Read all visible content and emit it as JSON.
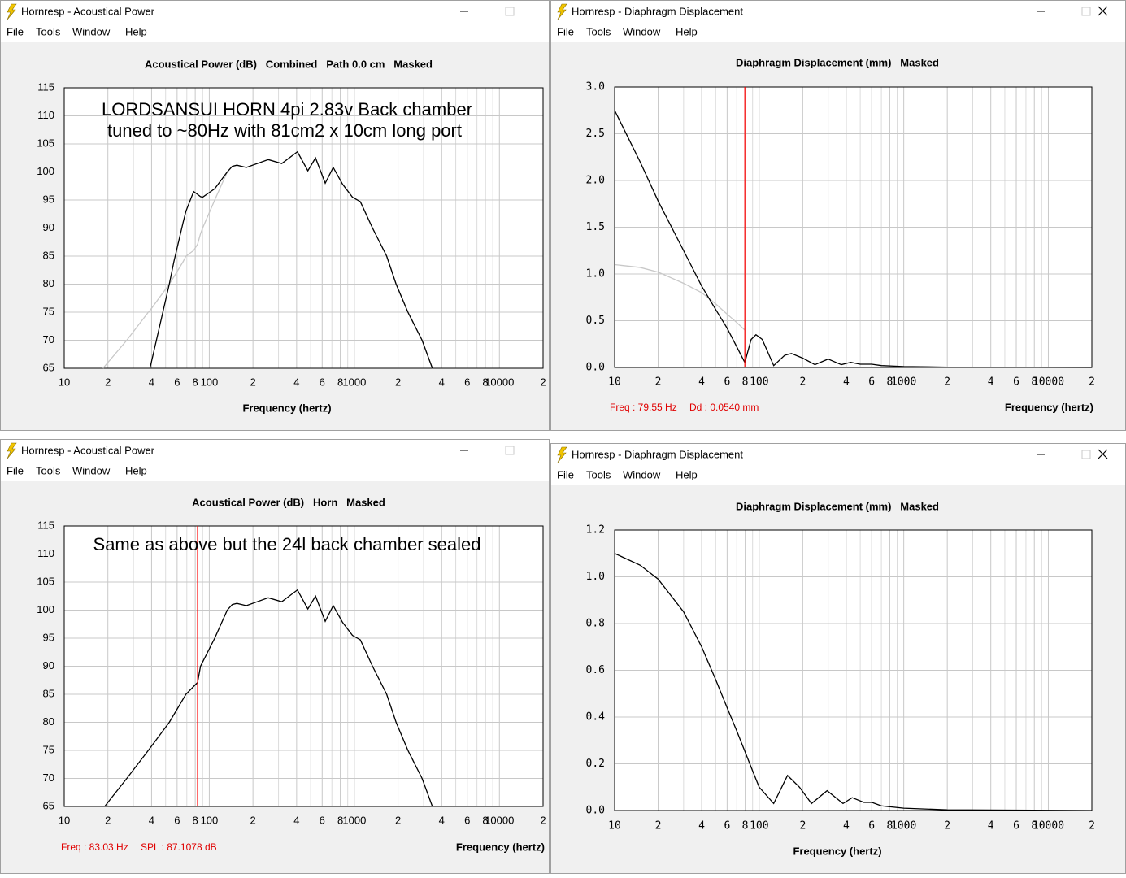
{
  "windows": [
    {
      "title": "Hornresp - Acoustical Power",
      "menu": [
        "File",
        "Tools",
        "Window",
        "Help"
      ]
    },
    {
      "title": "Hornresp - Diaphragm Displacement",
      "menu": [
        "File",
        "Tools",
        "Window",
        "Help"
      ]
    },
    {
      "title": "Hornresp - Acoustical Power",
      "menu": [
        "File",
        "Tools",
        "Window",
        "Help"
      ]
    },
    {
      "title": "Hornresp - Diaphragm Displacement",
      "menu": [
        "File",
        "Tools",
        "Window",
        "Help"
      ]
    }
  ],
  "chart_data": [
    {
      "type": "line",
      "title": "Acoustical Power (dB)   Combined   Path 0.0 cm   Masked",
      "x_label": "Frequency (hertz)",
      "annotations": [
        "LORDSANSUI HORN 4pi 2.83v Back chamber",
        "tuned to ~80Hz with 81cm2 x 10cm long port"
      ],
      "x_log": true,
      "grid": true,
      "xlim": [
        10,
        20000
      ],
      "ylim": [
        65,
        115
      ],
      "xticks": [
        10,
        {
          "value": 20,
          "label": "2"
        },
        {
          "value": 40,
          "label": "4"
        },
        {
          "value": 60,
          "label": "6"
        },
        {
          "value": 80,
          "label": "8"
        },
        100,
        {
          "value": 200,
          "label": "2"
        },
        {
          "value": 400,
          "label": "4"
        },
        {
          "value": 600,
          "label": "6"
        },
        {
          "value": 800,
          "label": "8"
        },
        1000,
        {
          "value": 2000,
          "label": "2"
        },
        {
          "value": 4000,
          "label": "4"
        },
        {
          "value": 6000,
          "label": "6"
        },
        {
          "value": 8000,
          "label": "8"
        },
        10000,
        {
          "value": 20000,
          "label": "2"
        }
      ],
      "xminor": [
        30,
        50,
        70,
        90,
        300,
        500,
        700,
        900,
        3000,
        5000,
        7000,
        9000
      ],
      "yticks": [
        65,
        70,
        75,
        80,
        85,
        90,
        95,
        100,
        105,
        110,
        115
      ],
      "x": [
        18.5,
        27,
        38,
        39,
        53,
        57,
        66,
        69,
        78,
        83,
        87,
        90,
        109,
        133,
        144,
        155,
        180,
        255,
        316,
        405,
        478,
        540,
        630,
        715,
        830,
        970,
        1100,
        1334,
        1670,
        1940,
        2340,
        2930,
        3450
      ],
      "series": [
        {
          "color": "#c8c8c8",
          "values": [
            65,
            70,
            75,
            75.3,
            80,
            81.3,
            84,
            85,
            86,
            87.1,
            89,
            90,
            95,
            100,
            101,
            101.2,
            100.8,
            102.2,
            101.5,
            103.6,
            100.2,
            102.5,
            98,
            100.8,
            97.8,
            95.5,
            94.7,
            90,
            85,
            80,
            75,
            70,
            65
          ]
        },
        {
          "color": "#000000",
          "values": [
            null,
            null,
            null,
            65,
            80,
            84,
            91,
            93,
            96.5,
            96,
            95.6,
            95.5,
            97,
            100,
            101,
            101.2,
            100.8,
            102.2,
            101.5,
            103.6,
            100.2,
            102.5,
            98,
            100.8,
            97.8,
            95.5,
            94.7,
            90,
            85,
            80,
            75,
            70,
            65
          ]
        }
      ]
    },
    {
      "type": "line",
      "title": "Diaphragm Displacement (mm)   Masked",
      "x_label": "Frequency (hertz)",
      "x_log": true,
      "grid": true,
      "xlim": [
        10,
        20000
      ],
      "ylim": [
        0,
        3
      ],
      "xticks": [
        10,
        {
          "value": 20,
          "label": "2"
        },
        {
          "value": 40,
          "label": "4"
        },
        {
          "value": 60,
          "label": "6"
        },
        {
          "value": 80,
          "label": "8"
        },
        100,
        {
          "value": 200,
          "label": "2"
        },
        {
          "value": 400,
          "label": "4"
        },
        {
          "value": 600,
          "label": "6"
        },
        {
          "value": 800,
          "label": "8"
        },
        1000,
        {
          "value": 2000,
          "label": "2"
        },
        {
          "value": 4000,
          "label": "4"
        },
        {
          "value": 6000,
          "label": "6"
        },
        {
          "value": 8000,
          "label": "8"
        },
        10000,
        {
          "value": 20000,
          "label": "2"
        }
      ],
      "xminor": [
        30,
        50,
        70,
        90,
        300,
        500,
        700,
        900,
        3000,
        5000,
        7000,
        9000
      ],
      "yticks": [
        {
          "value": 0,
          "label": "0.0"
        },
        0.5,
        {
          "value": 1,
          "label": "1.0"
        },
        1.5,
        {
          "value": 2,
          "label": "2.0"
        },
        2.5,
        {
          "value": 3,
          "label": "3.0"
        }
      ],
      "cursor": {
        "x": 79.55,
        "color": "#ff0000",
        "labels": [
          "Freq : 79.55 Hz",
          "Dd : 0.0540 mm"
        ]
      },
      "x": [
        10,
        15,
        20,
        30,
        40,
        50,
        60,
        70,
        79.55,
        88,
        95,
        105,
        126,
        150,
        167,
        200,
        243,
        300,
        370,
        430,
        500,
        600,
        700,
        1000,
        2000,
        20000
      ],
      "series": [
        {
          "color": "#c8c8c8",
          "values": [
            1.1,
            1.07,
            1.02,
            0.9,
            0.8,
            0.68,
            0.57,
            0.48,
            0.4,
            null,
            null,
            null,
            null,
            null,
            null,
            null,
            null,
            null,
            null,
            null,
            null,
            null,
            null,
            null,
            null,
            null
          ]
        },
        {
          "color": "#000000",
          "values": [
            2.75,
            2.2,
            1.78,
            1.25,
            0.87,
            0.62,
            0.42,
            0.22,
            0.054,
            0.3,
            0.35,
            0.3,
            0.02,
            0.13,
            0.15,
            0.1,
            0.03,
            0.09,
            0.03,
            0.055,
            0.035,
            0.035,
            0.02,
            0.01,
            0.003,
            0
          ]
        }
      ]
    },
    {
      "type": "line",
      "title": "Acoustical Power (dB)   Horn   Masked",
      "x_label": "Frequency (hertz)",
      "annotations": [
        "Same as above but the 24l back chamber sealed"
      ],
      "x_log": true,
      "grid": true,
      "xlim": [
        10,
        20000
      ],
      "ylim": [
        65,
        115
      ],
      "xticks": [
        10,
        {
          "value": 20,
          "label": "2"
        },
        {
          "value": 40,
          "label": "4"
        },
        {
          "value": 60,
          "label": "6"
        },
        {
          "value": 80,
          "label": "8"
        },
        100,
        {
          "value": 200,
          "label": "2"
        },
        {
          "value": 400,
          "label": "4"
        },
        {
          "value": 600,
          "label": "6"
        },
        {
          "value": 800,
          "label": "8"
        },
        1000,
        {
          "value": 2000,
          "label": "2"
        },
        {
          "value": 4000,
          "label": "4"
        },
        {
          "value": 6000,
          "label": "6"
        },
        {
          "value": 8000,
          "label": "8"
        },
        10000,
        {
          "value": 20000,
          "label": "2"
        }
      ],
      "xminor": [
        30,
        50,
        70,
        90,
        300,
        500,
        700,
        900,
        3000,
        5000,
        7000,
        9000
      ],
      "yticks": [
        65,
        70,
        75,
        80,
        85,
        90,
        95,
        100,
        105,
        110,
        115
      ],
      "cursor": {
        "x": 83.03,
        "color": "#ff0000",
        "labels": [
          "Freq : 83.03 Hz",
          "SPL : 87.1078 dB"
        ]
      },
      "x": [
        19,
        27,
        38,
        53,
        69,
        83,
        87,
        109,
        133,
        144,
        155,
        180,
        255,
        316,
        405,
        478,
        540,
        630,
        715,
        830,
        970,
        1100,
        1334,
        1670,
        1940,
        2340,
        2930,
        3450
      ],
      "series": [
        {
          "color": "#000000",
          "values": [
            65,
            70,
            75,
            80,
            85,
            87.1,
            90,
            95,
            100,
            101,
            101.2,
            100.8,
            102.2,
            101.5,
            103.6,
            100.2,
            102.5,
            98,
            100.8,
            97.8,
            95.5,
            94.7,
            90,
            85,
            80,
            75,
            70,
            65
          ]
        }
      ]
    },
    {
      "type": "line",
      "title": "Diaphragm Displacement (mm)   Masked",
      "x_label": "Frequency (hertz)",
      "x_log": true,
      "grid": true,
      "xlim": [
        10,
        20000
      ],
      "ylim": [
        0,
        1.2
      ],
      "xticks": [
        10,
        {
          "value": 20,
          "label": "2"
        },
        {
          "value": 40,
          "label": "4"
        },
        {
          "value": 60,
          "label": "6"
        },
        {
          "value": 80,
          "label": "8"
        },
        100,
        {
          "value": 200,
          "label": "2"
        },
        {
          "value": 400,
          "label": "4"
        },
        {
          "value": 600,
          "label": "6"
        },
        {
          "value": 800,
          "label": "8"
        },
        1000,
        {
          "value": 2000,
          "label": "2"
        },
        {
          "value": 4000,
          "label": "4"
        },
        {
          "value": 6000,
          "label": "6"
        },
        {
          "value": 8000,
          "label": "8"
        },
        10000,
        {
          "value": 20000,
          "label": "2"
        }
      ],
      "xminor": [
        30,
        50,
        70,
        90,
        300,
        500,
        700,
        900,
        3000,
        5000,
        7000,
        9000
      ],
      "yticks": [
        {
          "value": 0,
          "label": "0.0"
        },
        0.2,
        0.4,
        0.6,
        0.8,
        {
          "value": 1,
          "label": "1.0"
        },
        1.2
      ],
      "x": [
        10,
        15,
        20,
        30,
        40,
        50,
        60,
        70,
        80,
        90,
        100,
        126,
        157,
        190,
        230,
        295,
        380,
        440,
        530,
        600,
        700,
        1000,
        2000,
        20000
      ],
      "series": [
        {
          "color": "#000000",
          "values": [
            1.1,
            1.05,
            0.99,
            0.85,
            0.7,
            0.56,
            0.44,
            0.34,
            0.25,
            0.17,
            0.1,
            0.03,
            0.15,
            0.1,
            0.03,
            0.085,
            0.03,
            0.055,
            0.035,
            0.035,
            0.02,
            0.01,
            0.003,
            0
          ]
        }
      ]
    }
  ]
}
